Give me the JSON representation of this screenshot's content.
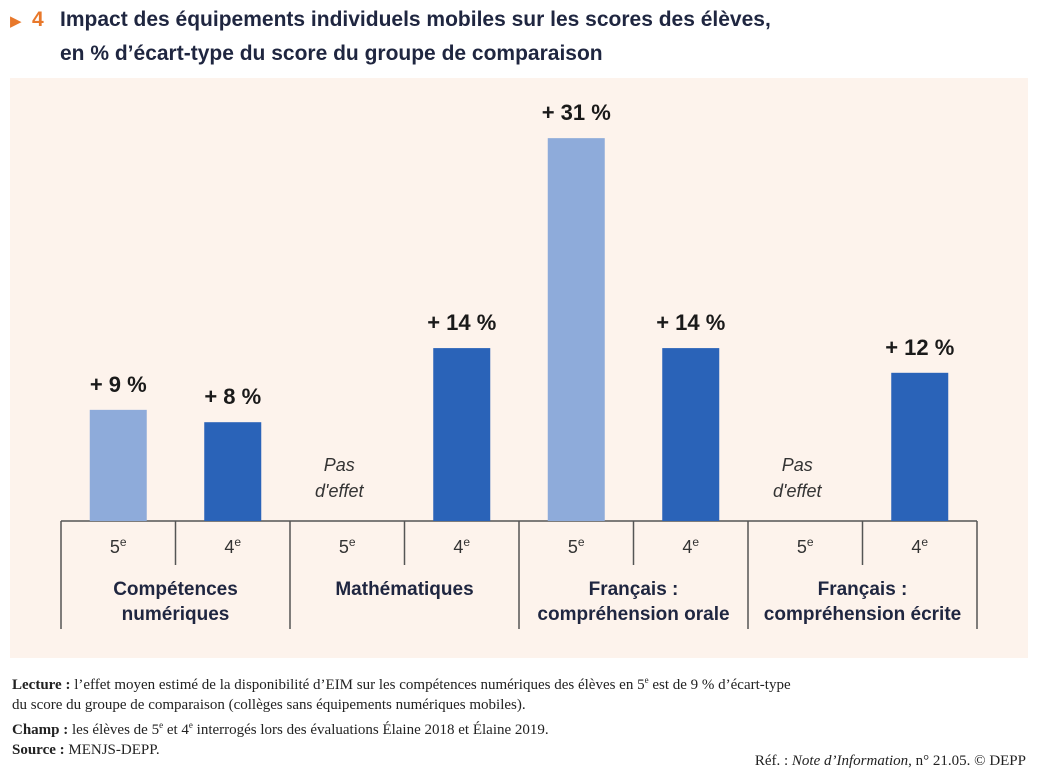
{
  "header": {
    "figure_number": "4",
    "title_line1": "Impact des équipements individuels mobiles sur les scores des élèves,",
    "title_line2": "en % d’écart-type du score du groupe de comparaison"
  },
  "chart_data": {
    "type": "bar",
    "groups": [
      "Compétences numériques",
      "Mathématiques",
      "Français : compréhension orale",
      "Français : compréhension écrite"
    ],
    "group_label_lines": [
      [
        "Compétences",
        "numériques"
      ],
      [
        "Mathématiques"
      ],
      [
        "Français :",
        "compréhension orale"
      ],
      [
        "Français :",
        "compréhension écrite"
      ]
    ],
    "bars": [
      {
        "group": 0,
        "level": "5e",
        "value": 9,
        "label": "+ 9 %"
      },
      {
        "group": 0,
        "level": "4e",
        "value": 8,
        "label": "+ 8 %"
      },
      {
        "group": 1,
        "level": "5e",
        "value": null,
        "label": "Pas d'effet"
      },
      {
        "group": 1,
        "level": "4e",
        "value": 14,
        "label": "+ 14 %"
      },
      {
        "group": 2,
        "level": "5e",
        "value": 31,
        "label": "+ 31 %"
      },
      {
        "group": 2,
        "level": "4e",
        "value": 14,
        "label": "+ 14 %"
      },
      {
        "group": 3,
        "level": "5e",
        "value": null,
        "label": "Pas d'effet"
      },
      {
        "group": 3,
        "level": "4e",
        "value": 12,
        "label": "+ 12 %"
      }
    ],
    "no_effect_lines": [
      "Pas",
      "d'effet"
    ],
    "colors": {
      "5e": "#8eabda",
      "4e": "#2a63b8",
      "axis": "#555555",
      "panel": "#fdf3ec"
    },
    "ylim": [
      0,
      33
    ],
    "grid": false
  },
  "notes": {
    "lecture_label": "Lecture :",
    "lecture_text_1": " l’effet moyen estimé de la disponibilité d’EIM sur les compétences numériques des élèves en 5",
    "lecture_sup_1": "e",
    "lecture_text_2": " est de 9 % d’écart-type",
    "lecture_text_3": "du score du groupe de comparaison (collèges sans équipements numériques mobiles).",
    "champ_label": "Champ :",
    "champ_text_1": " les élèves de 5",
    "champ_sup_1": "e",
    "champ_text_2": " et 4",
    "champ_sup_2": "e",
    "champ_text_3": " interrogés lors des évaluations Élaine 2018 et Élaine 2019.",
    "source_label": "Source :",
    "source_text": " MENJS-DEPP."
  },
  "reference": {
    "prefix": "Réf. : ",
    "publication": "Note d’Information",
    "suffix": ", n° 21.05. © DEPP"
  }
}
